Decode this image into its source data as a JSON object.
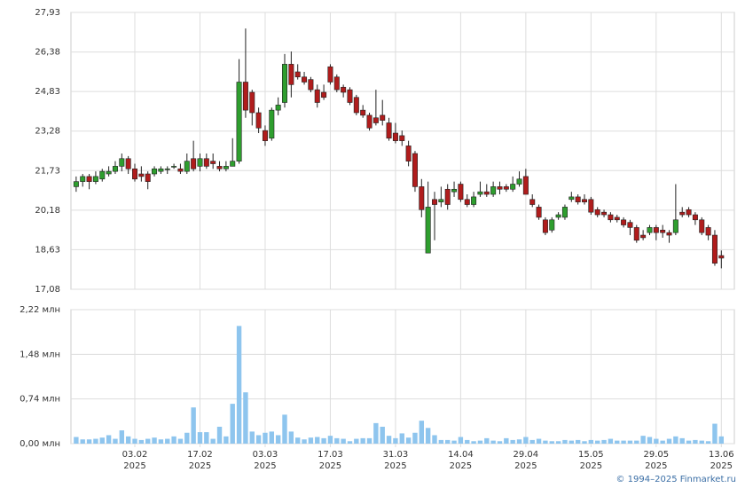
{
  "chart_data": {
    "type": "candlestick",
    "open": [
      21.1,
      21.3,
      21.5,
      21.3,
      21.4,
      21.6,
      21.7,
      21.9,
      22.2,
      21.8,
      21.6,
      21.6,
      21.6,
      21.7,
      21.8,
      21.9,
      21.8,
      21.7,
      22.2,
      21.9,
      22.2,
      22.1,
      21.9,
      21.8,
      21.9,
      22.1,
      25.2,
      24.8,
      24.0,
      23.3,
      23.0,
      24.1,
      24.4,
      25.9,
      25.6,
      25.4,
      25.3,
      24.9,
      24.8,
      25.8,
      25.4,
      25.0,
      24.9,
      24.6,
      24.1,
      23.9,
      23.8,
      23.9,
      23.6,
      23.2,
      23.1,
      22.7,
      22.4,
      21.1,
      18.5,
      20.6,
      20.5,
      21.0,
      20.9,
      21.2,
      20.6,
      20.4,
      20.8,
      20.9,
      20.8,
      21.1,
      21.1,
      21.0,
      21.2,
      21.5,
      20.6,
      20.3,
      19.8,
      19.4,
      19.9,
      19.9,
      20.6,
      20.7,
      20.6,
      20.6,
      20.2,
      20.1,
      20.0,
      19.9,
      19.8,
      19.7,
      19.5,
      19.2,
      19.3,
      19.5,
      19.4,
      19.3,
      19.3,
      20.1,
      20.2,
      20.0,
      19.8,
      19.5,
      19.2,
      18.4
    ],
    "high": [
      21.5,
      21.6,
      21.6,
      21.7,
      21.8,
      21.9,
      22.1,
      22.4,
      22.3,
      22.0,
      21.9,
      21.7,
      21.9,
      21.9,
      21.9,
      22.0,
      22.0,
      22.4,
      22.9,
      22.4,
      22.4,
      22.4,
      22.1,
      22.1,
      23.0,
      26.1,
      27.3,
      24.9,
      24.2,
      23.5,
      24.2,
      24.6,
      26.3,
      26.4,
      25.9,
      25.6,
      25.4,
      25.1,
      25.1,
      25.9,
      25.5,
      25.1,
      25.0,
      24.7,
      24.3,
      24.0,
      24.9,
      24.5,
      23.8,
      23.6,
      23.3,
      22.9,
      22.5,
      21.4,
      21.3,
      20.9,
      21.1,
      21.2,
      21.3,
      21.3,
      20.8,
      20.9,
      21.3,
      21.2,
      21.3,
      21.3,
      21.2,
      21.5,
      21.7,
      21.8,
      20.8,
      20.4,
      19.9,
      19.9,
      20.1,
      20.4,
      20.9,
      20.8,
      20.8,
      20.7,
      20.3,
      20.2,
      20.1,
      20.0,
      19.9,
      19.8,
      19.6,
      19.4,
      19.6,
      19.6,
      19.6,
      19.4,
      21.2,
      20.3,
      20.3,
      20.1,
      19.9,
      19.6,
      19.4,
      18.6
    ],
    "low": [
      20.9,
      21.1,
      21.0,
      21.2,
      21.3,
      21.5,
      21.6,
      21.7,
      21.6,
      21.3,
      21.3,
      21.0,
      21.5,
      21.6,
      21.6,
      21.8,
      21.6,
      21.6,
      21.7,
      21.7,
      21.8,
      21.8,
      21.7,
      21.7,
      21.9,
      22.0,
      23.8,
      23.5,
      23.2,
      22.7,
      22.9,
      23.9,
      24.2,
      24.6,
      25.3,
      25.1,
      24.8,
      24.2,
      24.5,
      25.1,
      24.8,
      24.6,
      24.3,
      23.9,
      23.8,
      23.3,
      23.5,
      23.5,
      22.9,
      22.8,
      22.7,
      21.9,
      20.9,
      19.9,
      18.5,
      19.0,
      20.3,
      20.2,
      20.7,
      20.5,
      20.3,
      20.3,
      20.7,
      20.7,
      20.7,
      20.8,
      20.9,
      20.9,
      21.1,
      20.8,
      20.3,
      19.8,
      19.2,
      19.3,
      19.8,
      19.8,
      20.5,
      20.4,
      20.4,
      20.0,
      19.9,
      19.9,
      19.7,
      19.7,
      19.5,
      19.2,
      18.9,
      19.0,
      19.2,
      19.0,
      19.1,
      18.9,
      19.2,
      19.9,
      19.9,
      19.6,
      19.2,
      19.0,
      18.0,
      17.9
    ],
    "close": [
      21.3,
      21.5,
      21.3,
      21.5,
      21.7,
      21.7,
      21.9,
      22.2,
      21.8,
      21.4,
      21.5,
      21.3,
      21.8,
      21.8,
      21.8,
      21.9,
      21.7,
      22.1,
      21.8,
      22.2,
      21.9,
      22.0,
      21.8,
      21.9,
      22.1,
      25.2,
      24.1,
      24.0,
      23.4,
      22.9,
      24.1,
      24.3,
      25.9,
      25.1,
      25.4,
      25.2,
      24.9,
      24.4,
      24.6,
      25.2,
      24.9,
      24.8,
      24.4,
      24.0,
      23.9,
      23.4,
      23.6,
      23.7,
      23.0,
      22.9,
      22.9,
      22.1,
      21.1,
      20.2,
      20.3,
      20.4,
      20.6,
      20.4,
      21.0,
      20.6,
      20.4,
      20.7,
      20.9,
      20.8,
      21.1,
      21.0,
      21.0,
      21.2,
      21.4,
      20.8,
      20.4,
      19.9,
      19.3,
      19.8,
      20.0,
      20.3,
      20.7,
      20.5,
      20.5,
      20.1,
      20.0,
      20.0,
      19.8,
      19.8,
      19.6,
      19.5,
      19.0,
      19.1,
      19.5,
      19.3,
      19.3,
      19.2,
      19.8,
      20.0,
      20.0,
      19.8,
      19.3,
      19.2,
      18.1,
      18.3
    ],
    "volume": [
      0.11,
      0.07,
      0.07,
      0.08,
      0.1,
      0.14,
      0.08,
      0.22,
      0.12,
      0.08,
      0.06,
      0.08,
      0.1,
      0.07,
      0.08,
      0.12,
      0.08,
      0.18,
      0.6,
      0.19,
      0.19,
      0.08,
      0.28,
      0.12,
      0.66,
      1.95,
      0.85,
      0.2,
      0.14,
      0.18,
      0.2,
      0.14,
      0.48,
      0.2,
      0.1,
      0.07,
      0.1,
      0.11,
      0.09,
      0.13,
      0.09,
      0.08,
      0.04,
      0.08,
      0.09,
      0.09,
      0.34,
      0.28,
      0.13,
      0.09,
      0.17,
      0.1,
      0.18,
      0.38,
      0.26,
      0.14,
      0.06,
      0.06,
      0.05,
      0.11,
      0.06,
      0.04,
      0.05,
      0.09,
      0.05,
      0.04,
      0.09,
      0.06,
      0.07,
      0.11,
      0.06,
      0.08,
      0.05,
      0.04,
      0.04,
      0.06,
      0.05,
      0.06,
      0.04,
      0.06,
      0.05,
      0.06,
      0.08,
      0.05,
      0.05,
      0.05,
      0.05,
      0.13,
      0.11,
      0.08,
      0.05,
      0.08,
      0.12,
      0.09,
      0.05,
      0.06,
      0.05,
      0.04,
      0.33,
      0.12
    ],
    "up_color": "#2e9e2e",
    "down_color": "#b01c1c",
    "volume_color": "#8ec5ee",
    "xlim": [
      -0.8,
      101
    ],
    "xticks": [
      {
        "value": 9,
        "label": "03.02\n2025"
      },
      {
        "value": 19,
        "label": "17.02\n2025"
      },
      {
        "value": 29,
        "label": "03.03\n2025"
      },
      {
        "value": 39,
        "label": "17.03\n2025"
      },
      {
        "value": 49,
        "label": "31.03\n2025"
      },
      {
        "value": 59,
        "label": "14.04\n2025"
      },
      {
        "value": 69,
        "label": "29.04\n2025"
      },
      {
        "value": 79,
        "label": "15.05\n2025"
      },
      {
        "value": 89,
        "label": "29.05\n2025"
      },
      {
        "value": 99,
        "label": "13.06\n2025"
      }
    ],
    "ylim": [
      17.08,
      27.93
    ],
    "yticks": [
      {
        "value": 17.08,
        "label": "17,08"
      },
      {
        "value": 18.63,
        "label": "18,63"
      },
      {
        "value": 20.18,
        "label": "20,18"
      },
      {
        "value": 21.73,
        "label": "21,73"
      },
      {
        "value": 23.28,
        "label": "23,28"
      },
      {
        "value": 24.83,
        "label": "24,83"
      },
      {
        "value": 26.38,
        "label": "26,38"
      },
      {
        "value": 27.93,
        "label": "27,93"
      }
    ],
    "y2lim": [
      0,
      2.22
    ],
    "y2ticks": [
      {
        "value": 0,
        "label": "0,00 млн"
      },
      {
        "value": 0.74,
        "label": "0,74 млн"
      },
      {
        "value": 1.48,
        "label": "1,48 млн"
      },
      {
        "value": 2.22,
        "label": "2,22 млн"
      }
    ],
    "grid": true
  },
  "footer": "© 1994–2025 Finmarket.ru"
}
